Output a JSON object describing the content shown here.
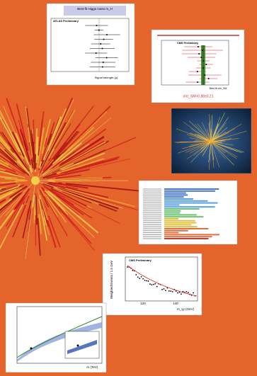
{
  "panels": [
    {
      "title": "Best-fit Higgs mass m_H",
      "experiment": "ATLAS Preliminary",
      "x_label": "Signal strength (μ)"
    },
    {
      "experiment": "CMS Preliminary",
      "x_label": "Best fit σ/σ_SM",
      "result": "σ/σ_SM=0.88±0.21"
    },
    {
      "experiment": "CMS Preliminary",
      "y_label": "Weighted Events / 1.5 GeV",
      "x_label": "m_γγ (GeV)",
      "x_ticks": [
        "120",
        "140"
      ]
    },
    {
      "x_label": "√s (TeV)"
    }
  ]
}
